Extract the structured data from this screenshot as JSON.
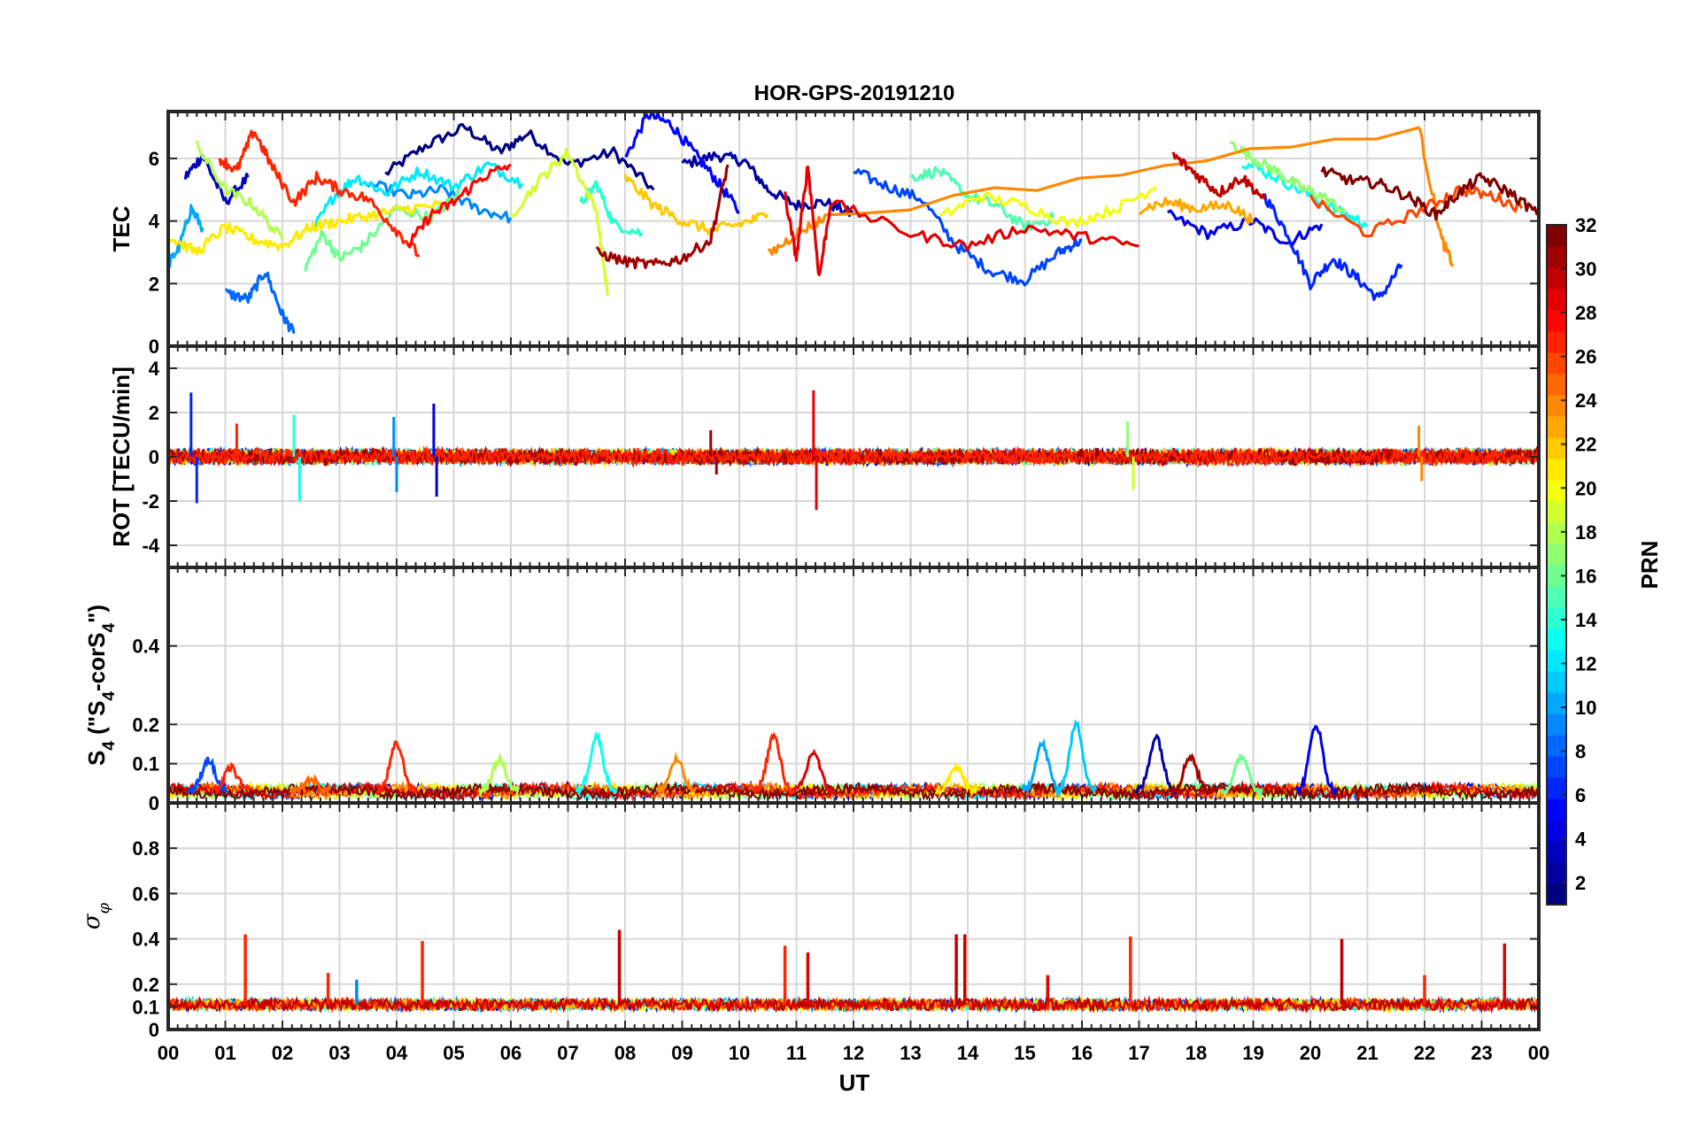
{
  "figure": {
    "title": "HOR-GPS-20191210",
    "xlabel": "UT",
    "x_tick_labels": [
      "00",
      "01",
      "02",
      "03",
      "04",
      "05",
      "06",
      "07",
      "08",
      "09",
      "10",
      "11",
      "12",
      "13",
      "14",
      "15",
      "16",
      "17",
      "18",
      "19",
      "20",
      "21",
      "22",
      "23",
      "00"
    ],
    "colorbar": {
      "label": "PRN",
      "range": [
        1,
        32
      ],
      "ticks": [
        2,
        4,
        6,
        8,
        10,
        12,
        14,
        16,
        18,
        20,
        22,
        24,
        26,
        28,
        30,
        32
      ],
      "colormap": "jet"
    }
  },
  "chart_data": [
    {
      "type": "line",
      "panel": "TEC",
      "ylabel": "TEC",
      "xlim": [
        0,
        24
      ],
      "ylim": [
        0,
        7.5
      ],
      "y_ticks": [
        0,
        2,
        4,
        6
      ],
      "grid": true,
      "series": [
        {
          "prn": 1,
          "x": [
            3.8,
            4.5,
            5.2,
            5.8,
            6.3,
            7.0,
            7.8,
            8.5
          ],
          "y": [
            5.5,
            6.4,
            7.0,
            6.2,
            6.8,
            5.8,
            6.2,
            5.0
          ]
        },
        {
          "prn": 2,
          "x": [
            9.0,
            9.6,
            10.1,
            10.5,
            11.0,
            11.5,
            12.0
          ],
          "y": [
            5.8,
            6.1,
            5.9,
            5.0,
            4.5,
            4.6,
            4.2
          ]
        },
        {
          "prn": 3,
          "x": [
            0.3,
            0.6,
            1.0,
            1.4
          ],
          "y": [
            5.4,
            6.1,
            4.6,
            5.4
          ]
        },
        {
          "prn": 4,
          "x": [
            17.5,
            18.2,
            19.0,
            19.6,
            20.2
          ],
          "y": [
            4.2,
            3.6,
            4.0,
            3.3,
            3.9
          ]
        },
        {
          "prn": 5,
          "x": [
            8.0,
            8.4,
            8.8,
            9.2,
            9.6,
            10.0
          ],
          "y": [
            6.0,
            7.4,
            7.1,
            6.2,
            5.3,
            4.3
          ]
        },
        {
          "prn": 6,
          "x": [
            19.2,
            19.6,
            20.0,
            20.4,
            20.8,
            21.2,
            21.6
          ],
          "y": [
            4.8,
            3.6,
            2.0,
            2.8,
            2.2,
            1.5,
            2.6
          ]
        },
        {
          "prn": 7,
          "x": [
            12.0,
            12.6,
            13.2,
            13.8,
            14.4,
            15.0,
            15.6,
            16.0
          ],
          "y": [
            5.6,
            5.1,
            4.7,
            3.2,
            2.4,
            2.1,
            3.0,
            3.4
          ]
        },
        {
          "prn": 8,
          "x": [
            1.0,
            1.4,
            1.7,
            2.0,
            2.2
          ],
          "y": [
            1.7,
            1.5,
            2.4,
            1.0,
            0.4
          ]
        },
        {
          "prn": 9,
          "x": [
            3.5,
            4.2,
            4.8,
            5.4,
            6.0
          ],
          "y": [
            5.2,
            4.8,
            5.0,
            4.4,
            4.1
          ]
        },
        {
          "prn": 10,
          "x": [
            0.0,
            0.2,
            0.4,
            0.6
          ],
          "y": [
            2.6,
            3.2,
            4.4,
            3.8
          ]
        },
        {
          "prn": 12,
          "x": [
            2.5,
            2.9,
            3.3,
            3.8,
            4.4,
            5.0,
            5.6,
            6.2
          ],
          "y": [
            3.6,
            4.8,
            5.4,
            4.9,
            5.6,
            5.1,
            5.8,
            5.2
          ]
        },
        {
          "prn": 13,
          "x": [
            18.8,
            19.4,
            20.0,
            20.6,
            21.0
          ],
          "y": [
            5.9,
            5.4,
            4.8,
            4.2,
            3.9
          ]
        },
        {
          "prn": 14,
          "x": [
            7.2,
            7.5,
            7.8,
            8.3
          ],
          "y": [
            4.5,
            5.2,
            3.9,
            3.6
          ]
        },
        {
          "prn": 15,
          "x": [
            13.0,
            13.5,
            14.0,
            14.5,
            15.0,
            15.5
          ],
          "y": [
            5.4,
            5.6,
            4.8,
            4.5,
            3.8,
            4.1
          ]
        },
        {
          "prn": 16,
          "x": [
            2.4,
            2.7,
            3.0,
            3.4,
            4.0,
            4.6,
            5.1
          ],
          "y": [
            2.5,
            3.6,
            2.8,
            3.2,
            4.4,
            4.1,
            4.9
          ]
        },
        {
          "prn": 17,
          "x": [
            18.6,
            19.0,
            19.4,
            19.8,
            20.2,
            20.6
          ],
          "y": [
            6.5,
            6.0,
            5.6,
            5.1,
            4.8,
            4.3
          ]
        },
        {
          "prn": 18,
          "x": [
            0.5,
            1.0,
            1.5,
            2.0
          ],
          "y": [
            6.4,
            5.0,
            4.5,
            3.4
          ]
        },
        {
          "prn": 19,
          "x": [
            6.0,
            6.6,
            7.0,
            7.5,
            7.7
          ],
          "y": [
            4.2,
            5.5,
            6.2,
            4.3,
            1.6
          ]
        },
        {
          "prn": 20,
          "x": [
            13.5,
            14.2,
            15.0,
            15.8,
            16.6,
            17.3
          ],
          "y": [
            4.1,
            4.8,
            4.5,
            3.9,
            4.4,
            5.1
          ]
        },
        {
          "prn": 21,
          "x": [
            0.0,
            0.5,
            1.0,
            1.5,
            2.0,
            2.5,
            3.0,
            3.6,
            4.2,
            4.8
          ],
          "y": [
            3.5,
            3.0,
            3.8,
            3.4,
            3.2,
            3.8,
            4.0,
            4.2,
            4.4,
            4.5
          ]
        },
        {
          "prn": 22,
          "x": [
            8.0,
            8.5,
            9.0,
            9.5,
            10.0,
            10.5
          ],
          "y": [
            5.4,
            4.5,
            4.0,
            3.7,
            3.9,
            4.2
          ]
        },
        {
          "prn": 23,
          "x": [
            17.0,
            17.5,
            18.0,
            18.6,
            19.0
          ],
          "y": [
            4.4,
            4.6,
            4.4,
            4.5,
            4.0
          ]
        },
        {
          "prn": 24,
          "x": [
            10.5,
            11.0,
            11.5,
            21.9,
            22.3,
            22.5
          ],
          "y": [
            2.9,
            3.6,
            4.1,
            7.0,
            3.4,
            2.6
          ]
        },
        {
          "prn": 26,
          "x": [
            20.0,
            21.0,
            22.0,
            22.6,
            23.2,
            23.7
          ],
          "y": [
            4.7,
            3.6,
            4.4,
            5.0,
            4.8,
            4.4
          ]
        },
        {
          "prn": 27,
          "x": [
            0.9,
            1.2,
            1.5,
            1.8,
            2.2,
            2.6,
            3.0,
            3.5,
            4.0,
            4.4
          ],
          "y": [
            6.0,
            5.6,
            6.9,
            5.8,
            4.6,
            5.4,
            5.0,
            4.7,
            3.7,
            2.9
          ]
        },
        {
          "prn": 28,
          "x": [
            4.2,
            4.6,
            5.0,
            5.5,
            6.0
          ],
          "y": [
            3.2,
            4.2,
            4.6,
            5.4,
            5.8
          ]
        },
        {
          "prn": 29,
          "x": [
            10.8,
            11.0,
            11.2,
            11.4,
            11.6,
            13.0,
            14.0,
            15.0,
            16.0,
            17.0
          ],
          "y": [
            4.8,
            2.8,
            5.8,
            2.2,
            4.6,
            3.6,
            3.2,
            3.8,
            3.5,
            3.2
          ]
        },
        {
          "prn": 30,
          "x": [
            17.6,
            18.0,
            18.4,
            18.8,
            19.2
          ],
          "y": [
            6.1,
            5.5,
            4.9,
            5.4,
            4.7
          ]
        },
        {
          "prn": 31,
          "x": [
            7.5,
            8.0,
            8.5,
            9.0,
            9.5,
            9.8
          ],
          "y": [
            3.0,
            2.7,
            2.6,
            2.8,
            3.4,
            5.8
          ]
        },
        {
          "prn": 32,
          "x": [
            20.2,
            20.7,
            21.2,
            21.7,
            22.2,
            22.6,
            23.0,
            23.5,
            24.0
          ],
          "y": [
            5.6,
            5.3,
            5.2,
            4.8,
            4.2,
            4.9,
            5.4,
            4.9,
            4.2
          ]
        }
      ]
    },
    {
      "type": "line",
      "panel": "ROT",
      "ylabel": "ROT [TECU/min]",
      "xlim": [
        0,
        24
      ],
      "ylim": [
        -5,
        5
      ],
      "y_ticks": [
        -4,
        -2,
        0,
        2,
        4
      ],
      "grid": true,
      "noise_level": 0.3,
      "spikes": [
        {
          "x": 0.4,
          "y": 2.9,
          "prn": 6
        },
        {
          "x": 0.5,
          "y": -2.1,
          "prn": 6
        },
        {
          "x": 1.2,
          "y": 1.5,
          "prn": 27
        },
        {
          "x": 2.2,
          "y": 1.9,
          "prn": 14
        },
        {
          "x": 2.3,
          "y": -2.0,
          "prn": 13
        },
        {
          "x": 3.95,
          "y": 1.8,
          "prn": 9
        },
        {
          "x": 4.0,
          "y": -1.6,
          "prn": 9
        },
        {
          "x": 4.65,
          "y": 2.4,
          "prn": 4
        },
        {
          "x": 4.7,
          "y": -1.8,
          "prn": 4
        },
        {
          "x": 9.5,
          "y": 1.2,
          "prn": 31
        },
        {
          "x": 9.6,
          "y": -0.8,
          "prn": 31
        },
        {
          "x": 11.3,
          "y": 3.0,
          "prn": 29
        },
        {
          "x": 11.35,
          "y": -2.4,
          "prn": 29
        },
        {
          "x": 16.8,
          "y": 1.6,
          "prn": 17
        },
        {
          "x": 16.9,
          "y": -1.5,
          "prn": 19
        },
        {
          "x": 21.9,
          "y": 1.4,
          "prn": 24
        },
        {
          "x": 21.95,
          "y": -1.1,
          "prn": 24
        }
      ]
    },
    {
      "type": "line",
      "panel": "S4",
      "ylabel": "S4 (\"S4-corS4\")",
      "xlim": [
        0,
        24
      ],
      "ylim": [
        0,
        0.6
      ],
      "y_ticks": [
        0,
        0.1,
        0.2,
        0.4
      ],
      "grid": true,
      "baseline": 0.03,
      "bumps": [
        {
          "x": 0.7,
          "y": 0.11,
          "prn": 7
        },
        {
          "x": 1.1,
          "y": 0.09,
          "prn": 27
        },
        {
          "x": 2.5,
          "y": 0.06,
          "prn": 25
        },
        {
          "x": 4.0,
          "y": 0.15,
          "prn": 27
        },
        {
          "x": 5.8,
          "y": 0.11,
          "prn": 18
        },
        {
          "x": 7.5,
          "y": 0.17,
          "prn": 13
        },
        {
          "x": 8.9,
          "y": 0.11,
          "prn": 24
        },
        {
          "x": 10.6,
          "y": 0.17,
          "prn": 27
        },
        {
          "x": 11.3,
          "y": 0.13,
          "prn": 29
        },
        {
          "x": 13.8,
          "y": 0.09,
          "prn": 21
        },
        {
          "x": 15.3,
          "y": 0.15,
          "prn": 10
        },
        {
          "x": 15.9,
          "y": 0.2,
          "prn": 11
        },
        {
          "x": 17.3,
          "y": 0.17,
          "prn": 2
        },
        {
          "x": 17.9,
          "y": 0.12,
          "prn": 31
        },
        {
          "x": 18.8,
          "y": 0.12,
          "prn": 16
        },
        {
          "x": 20.1,
          "y": 0.2,
          "prn": 4
        }
      ]
    },
    {
      "type": "line",
      "panel": "sigma_phi",
      "ylabel": "σφ",
      "xlim": [
        0,
        24
      ],
      "ylim": [
        0,
        1
      ],
      "y_ticks": [
        0,
        0.1,
        0.2,
        0.4,
        0.6,
        0.8
      ],
      "grid": true,
      "baseline": 0.11,
      "spikes": [
        {
          "x": 1.35,
          "y": 0.42,
          "prn": 27
        },
        {
          "x": 2.8,
          "y": 0.25,
          "prn": 27
        },
        {
          "x": 3.3,
          "y": 0.22,
          "prn": 9
        },
        {
          "x": 4.45,
          "y": 0.39,
          "prn": 27
        },
        {
          "x": 7.9,
          "y": 0.44,
          "prn": 30
        },
        {
          "x": 10.8,
          "y": 0.37,
          "prn": 27
        },
        {
          "x": 11.2,
          "y": 0.34,
          "prn": 29
        },
        {
          "x": 13.8,
          "y": 0.42,
          "prn": 30
        },
        {
          "x": 13.95,
          "y": 0.42,
          "prn": 30
        },
        {
          "x": 15.4,
          "y": 0.24,
          "prn": 29
        },
        {
          "x": 16.85,
          "y": 0.41,
          "prn": 27
        },
        {
          "x": 20.55,
          "y": 0.4,
          "prn": 30
        },
        {
          "x": 22.0,
          "y": 0.24,
          "prn": 27
        },
        {
          "x": 23.4,
          "y": 0.38,
          "prn": 29
        }
      ]
    }
  ]
}
